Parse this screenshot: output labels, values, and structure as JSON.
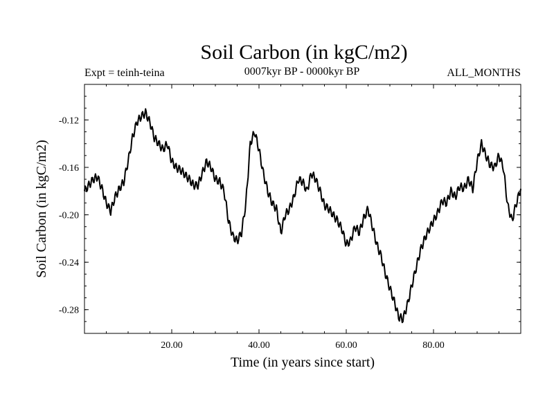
{
  "chart_data": {
    "type": "line",
    "title": "Soil Carbon (in kgC/m2)",
    "subtitle_left": "Expt = teinh-teina",
    "subtitle_center": "0007kyr BP - 0000kyr BP",
    "subtitle_right": "ALL_MONTHS",
    "xlabel": "Time (in years since start)",
    "ylabel": "Soil Carbon (in kgC/m2)",
    "xlim": [
      0,
      100
    ],
    "ylim": [
      -0.3,
      -0.09
    ],
    "xticks": [
      20,
      40,
      60,
      80
    ],
    "xtick_labels": [
      "20.00",
      "40.00",
      "60.00",
      "80.00"
    ],
    "yticks": [
      -0.12,
      -0.16,
      -0.2,
      -0.24,
      -0.28
    ],
    "ytick_labels": [
      "-0.12",
      "-0.16",
      "-0.20",
      "-0.24",
      "-0.28"
    ],
    "series": [
      {
        "name": "Soil Carbon",
        "x": [
          0,
          1,
          2,
          3,
          4,
          5,
          6,
          7,
          8,
          9,
          10,
          11,
          12,
          13,
          14,
          15,
          16,
          17,
          18,
          19,
          20,
          21,
          22,
          23,
          24,
          25,
          26,
          27,
          28,
          29,
          30,
          31,
          32,
          33,
          34,
          35,
          36,
          37,
          38,
          39,
          40,
          41,
          42,
          43,
          44,
          45,
          46,
          47,
          48,
          49,
          50,
          51,
          52,
          53,
          54,
          55,
          56,
          57,
          58,
          59,
          60,
          61,
          62,
          63,
          64,
          65,
          66,
          67,
          68,
          69,
          70,
          71,
          72,
          73,
          74,
          75,
          76,
          77,
          78,
          79,
          80,
          81,
          82,
          83,
          84,
          85,
          86,
          87,
          88,
          89,
          90,
          91,
          92,
          93,
          94,
          95,
          96,
          97,
          98,
          99,
          100
        ],
        "values": [
          -0.18,
          -0.175,
          -0.17,
          -0.168,
          -0.178,
          -0.19,
          -0.197,
          -0.185,
          -0.178,
          -0.172,
          -0.155,
          -0.135,
          -0.122,
          -0.117,
          -0.114,
          -0.122,
          -0.135,
          -0.14,
          -0.145,
          -0.14,
          -0.155,
          -0.16,
          -0.162,
          -0.166,
          -0.17,
          -0.175,
          -0.175,
          -0.165,
          -0.155,
          -0.16,
          -0.17,
          -0.172,
          -0.18,
          -0.205,
          -0.218,
          -0.222,
          -0.215,
          -0.19,
          -0.14,
          -0.13,
          -0.145,
          -0.165,
          -0.18,
          -0.19,
          -0.195,
          -0.215,
          -0.2,
          -0.195,
          -0.185,
          -0.17,
          -0.172,
          -0.18,
          -0.165,
          -0.17,
          -0.18,
          -0.192,
          -0.195,
          -0.2,
          -0.205,
          -0.212,
          -0.225,
          -0.222,
          -0.21,
          -0.215,
          -0.203,
          -0.195,
          -0.21,
          -0.225,
          -0.235,
          -0.25,
          -0.262,
          -0.273,
          -0.286,
          -0.288,
          -0.276,
          -0.26,
          -0.245,
          -0.23,
          -0.22,
          -0.212,
          -0.205,
          -0.198,
          -0.188,
          -0.19,
          -0.18,
          -0.185,
          -0.176,
          -0.178,
          -0.17,
          -0.178,
          -0.155,
          -0.14,
          -0.15,
          -0.158,
          -0.16,
          -0.15,
          -0.16,
          -0.192,
          -0.205,
          -0.19,
          -0.178
        ]
      }
    ]
  }
}
